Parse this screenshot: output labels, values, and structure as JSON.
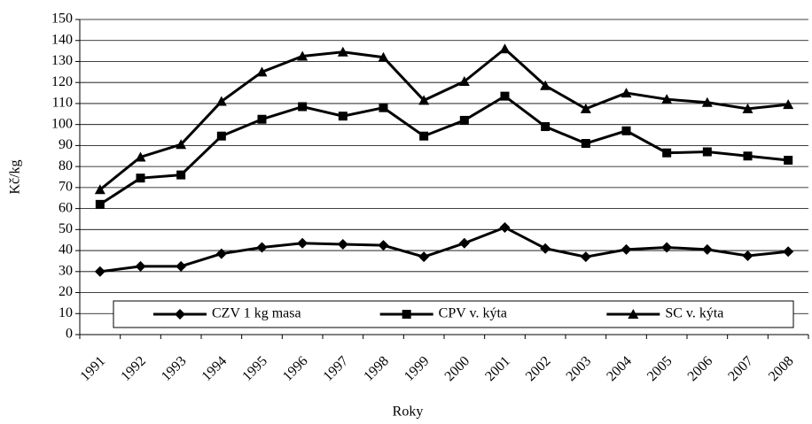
{
  "chart_data": {
    "type": "line",
    "x_label": "Roky",
    "y_label": "Kč/kg",
    "categories": [
      "1991",
      "1992",
      "1993",
      "1994",
      "1995",
      "1996",
      "1997",
      "1998",
      "1999",
      "2000",
      "2001",
      "2002",
      "2003",
      "2004",
      "2005",
      "2006",
      "2007",
      "2008"
    ],
    "series": [
      {
        "name": "CZV 1 kg masa",
        "color": "#000000",
        "marker": "diamond",
        "values": [
          30,
          32.5,
          32.5,
          38.5,
          41.5,
          43.5,
          43,
          42.5,
          37,
          43.5,
          51,
          41,
          37,
          40.5,
          41.5,
          40.5,
          37.5,
          39.5
        ]
      },
      {
        "name": "CPV v. kýta",
        "color": "#000000",
        "marker": "square",
        "values": [
          62,
          74.5,
          76,
          94.5,
          102.5,
          108.5,
          104,
          108,
          94.5,
          102,
          113.5,
          99,
          91,
          97,
          86.5,
          87,
          85,
          83
        ]
      },
      {
        "name": "SC v. kýta",
        "color": "#000000",
        "marker": "triangle",
        "values": [
          69,
          84.5,
          90.5,
          111,
          125,
          132.5,
          134.5,
          132,
          111.5,
          120.5,
          136,
          118.5,
          107.5,
          115,
          112,
          110.5,
          107.5,
          109.5
        ]
      }
    ],
    "ylim": [
      0,
      150
    ],
    "yticks": [
      0,
      10,
      20,
      30,
      40,
      50,
      60,
      70,
      80,
      90,
      100,
      110,
      120,
      130,
      140,
      150
    ],
    "grid": true,
    "legend": "bottom"
  }
}
